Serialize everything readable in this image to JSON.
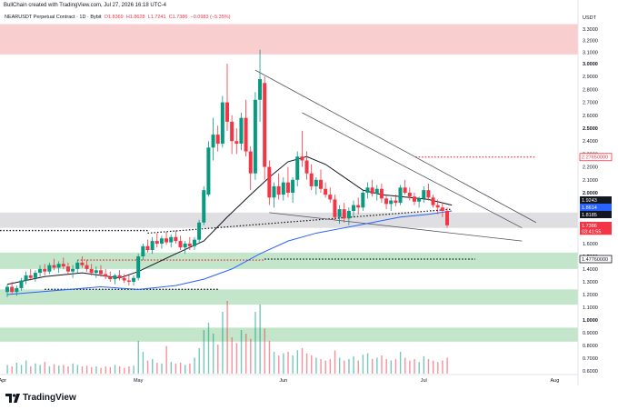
{
  "header": {
    "text": "BullChain created with TradingView.com, Jul 27, 2026 16:18 UTC-4"
  },
  "legend": {
    "symbol": "NEARUSDT Perpetual Contract · 1D · Bybit",
    "open": "O1.8369",
    "high": "H1.8628",
    "low": "L1.7241",
    "close": "C1.7386",
    "change": "−0.0983 (−5.35%)"
  },
  "currency": "USDT",
  "branding": "TradingView",
  "colors": {
    "up": "#089981",
    "down": "#f23645",
    "supply_zone": "#f7c5c7",
    "demand_zone": "#b9e0c0",
    "gray_zone": "#d9d9dd",
    "ma_black": "#131722",
    "ma_blue": "#2962ff"
  },
  "chart_data": {
    "type": "candlestick",
    "x_ticks": [
      "Apr",
      "May",
      "Jun",
      "Jul",
      "Aug"
    ],
    "y_ticks": [
      {
        "value": 3.3,
        "label": "3.3000"
      },
      {
        "value": 3.2,
        "label": "3.2000"
      },
      {
        "value": 3.1,
        "label": "3.1000"
      },
      {
        "value": 3.0,
        "label": "3.0000",
        "bold": true
      },
      {
        "value": 2.9,
        "label": "2.9000"
      },
      {
        "value": 2.8,
        "label": "2.8000"
      },
      {
        "value": 2.7,
        "label": "2.7000"
      },
      {
        "value": 2.6,
        "label": "2.6000"
      },
      {
        "value": 2.5,
        "label": "2.5000",
        "bold": true
      },
      {
        "value": 2.4,
        "label": "2.4000"
      },
      {
        "value": 2.3,
        "label": "2.3000"
      },
      {
        "value": 2.2,
        "label": "2.2000"
      },
      {
        "value": 2.1,
        "label": "2.1000"
      },
      {
        "value": 2.0,
        "label": "2.0000",
        "bold": true
      },
      {
        "value": 1.6,
        "label": "1.6000"
      },
      {
        "value": 1.5,
        "label": "1.5000",
        "bold": true
      },
      {
        "value": 1.4,
        "label": "1.4000"
      },
      {
        "value": 1.3,
        "label": "1.3000"
      },
      {
        "value": 1.2,
        "label": "1.2000"
      },
      {
        "value": 1.1,
        "label": "1.1000"
      },
      {
        "value": 1.0,
        "label": "1.0000",
        "bold": true
      },
      {
        "value": 0.9,
        "label": "0.9000"
      },
      {
        "value": 0.8,
        "label": "0.8000"
      },
      {
        "value": 0.7,
        "label": "0.7000"
      },
      {
        "value": 0.6,
        "label": "0.6000"
      }
    ],
    "price_labels": [
      {
        "label": "2.27650000",
        "value": 2.2765,
        "color": "#f23645",
        "style": "outline"
      },
      {
        "label": "1.9243",
        "value": 1.9243,
        "color": "#131722",
        "style": "fill"
      },
      {
        "label": "1.8614",
        "value": 1.8614,
        "color": "#2962ff",
        "style": "fill"
      },
      {
        "label": "1.8185",
        "value": 1.8185,
        "color": "#131722",
        "style": "fill"
      },
      {
        "label": "1.7386",
        "value": 1.7386,
        "color": "#f23645",
        "style": "fill"
      },
      {
        "label": "03:41:55",
        "value": 1.695,
        "color": "#f23645",
        "style": "fill"
      },
      {
        "label": "1.47760000",
        "value": 1.4776,
        "color": "#131722",
        "style": "outline"
      }
    ],
    "zones": [
      {
        "kind": "supply",
        "from": 3.08,
        "to": 3.34
      },
      {
        "kind": "gray",
        "from": 1.72,
        "to": 1.83
      },
      {
        "kind": "demand",
        "from": 1.4,
        "to": 1.53
      },
      {
        "kind": "demand",
        "from": 1.12,
        "to": 1.24
      },
      {
        "kind": "demand",
        "from": 0.83,
        "to": 0.94
      }
    ],
    "candles": [
      [
        1.22,
        1.28,
        1.18,
        1.26
      ],
      [
        1.26,
        1.3,
        1.2,
        1.22
      ],
      [
        1.22,
        1.27,
        1.19,
        1.25
      ],
      [
        1.25,
        1.33,
        1.23,
        1.31
      ],
      [
        1.31,
        1.38,
        1.28,
        1.35
      ],
      [
        1.35,
        1.4,
        1.31,
        1.33
      ],
      [
        1.33,
        1.39,
        1.3,
        1.37
      ],
      [
        1.37,
        1.43,
        1.34,
        1.4
      ],
      [
        1.4,
        1.44,
        1.35,
        1.38
      ],
      [
        1.38,
        1.45,
        1.36,
        1.43
      ],
      [
        1.43,
        1.48,
        1.39,
        1.41
      ],
      [
        1.41,
        1.46,
        1.37,
        1.44
      ],
      [
        1.44,
        1.49,
        1.4,
        1.42
      ],
      [
        1.42,
        1.45,
        1.36,
        1.38
      ],
      [
        1.38,
        1.43,
        1.33,
        1.4
      ],
      [
        1.4,
        1.47,
        1.37,
        1.45
      ],
      [
        1.45,
        1.5,
        1.41,
        1.43
      ],
      [
        1.43,
        1.47,
        1.38,
        1.4
      ],
      [
        1.4,
        1.44,
        1.35,
        1.37
      ],
      [
        1.37,
        1.42,
        1.33,
        1.39
      ],
      [
        1.39,
        1.43,
        1.34,
        1.36
      ],
      [
        1.36,
        1.4,
        1.32,
        1.34
      ],
      [
        1.34,
        1.38,
        1.3,
        1.32
      ],
      [
        1.32,
        1.36,
        1.28,
        1.35
      ],
      [
        1.35,
        1.39,
        1.31,
        1.33
      ],
      [
        1.33,
        1.36,
        1.29,
        1.31
      ],
      [
        1.31,
        1.35,
        1.27,
        1.3
      ],
      [
        1.3,
        1.35,
        1.27,
        1.33
      ],
      [
        1.33,
        1.52,
        1.31,
        1.5
      ],
      [
        1.5,
        1.6,
        1.47,
        1.58
      ],
      [
        1.58,
        1.63,
        1.53,
        1.55
      ],
      [
        1.55,
        1.65,
        1.52,
        1.62
      ],
      [
        1.62,
        1.68,
        1.57,
        1.6
      ],
      [
        1.6,
        1.66,
        1.56,
        1.64
      ],
      [
        1.64,
        1.69,
        1.59,
        1.61
      ],
      [
        1.61,
        1.67,
        1.57,
        1.65
      ],
      [
        1.65,
        1.7,
        1.6,
        1.62
      ],
      [
        1.62,
        1.66,
        1.55,
        1.57
      ],
      [
        1.57,
        1.62,
        1.52,
        1.6
      ],
      [
        1.6,
        1.65,
        1.55,
        1.58
      ],
      [
        1.58,
        1.65,
        1.55,
        1.63
      ],
      [
        1.63,
        1.78,
        1.6,
        1.76
      ],
      [
        1.76,
        2.05,
        1.74,
        2.02
      ],
      [
        1.98,
        2.4,
        1.96,
        2.35
      ],
      [
        2.35,
        2.58,
        2.25,
        2.45
      ],
      [
        2.45,
        2.52,
        2.32,
        2.38
      ],
      [
        2.38,
        2.75,
        2.35,
        2.7
      ],
      [
        2.7,
        3.0,
        2.48,
        2.55
      ],
      [
        2.55,
        2.6,
        2.3,
        2.4
      ],
      [
        2.4,
        2.5,
        2.3,
        2.38
      ],
      [
        2.38,
        2.62,
        2.33,
        2.58
      ],
      [
        2.58,
        2.72,
        2.28,
        2.32
      ],
      [
        2.32,
        2.36,
        2.02,
        2.15
      ],
      [
        2.15,
        2.78,
        2.1,
        2.72
      ],
      [
        2.72,
        3.12,
        2.55,
        2.88
      ],
      [
        2.85,
        2.9,
        2.1,
        2.2
      ],
      [
        2.2,
        2.25,
        1.88,
        1.95
      ],
      [
        1.95,
        2.08,
        1.86,
        2.05
      ],
      [
        2.05,
        2.15,
        1.93,
        1.98
      ],
      [
        1.98,
        2.12,
        1.92,
        2.08
      ],
      [
        2.08,
        2.2,
        1.95,
        2.0
      ],
      [
        2.0,
        2.12,
        1.9,
        2.1
      ],
      [
        2.1,
        2.32,
        2.05,
        2.28
      ],
      [
        2.28,
        2.48,
        2.2,
        2.25
      ],
      [
        2.25,
        2.32,
        2.1,
        2.15
      ],
      [
        2.15,
        2.22,
        2.02,
        2.05
      ],
      [
        2.05,
        2.12,
        1.98,
        2.1
      ],
      [
        2.1,
        2.18,
        2.0,
        2.03
      ],
      [
        2.03,
        2.08,
        1.95,
        1.98
      ],
      [
        1.98,
        2.04,
        1.9,
        1.93
      ],
      [
        1.93,
        1.98,
        1.78,
        1.8
      ],
      [
        1.8,
        1.88,
        1.75,
        1.85
      ],
      [
        1.85,
        1.9,
        1.76,
        1.79
      ],
      [
        1.79,
        1.86,
        1.74,
        1.84
      ],
      [
        1.84,
        1.92,
        1.8,
        1.88
      ],
      [
        1.88,
        1.95,
        1.82,
        1.86
      ],
      [
        1.86,
        2.02,
        1.84,
        2.0
      ],
      [
        2.0,
        2.08,
        1.94,
        2.04
      ],
      [
        2.04,
        2.1,
        1.96,
        1.99
      ],
      [
        1.99,
        2.06,
        1.92,
        2.03
      ],
      [
        2.03,
        2.07,
        1.9,
        1.94
      ],
      [
        1.94,
        1.98,
        1.85,
        1.89
      ],
      [
        1.89,
        1.95,
        1.84,
        1.92
      ],
      [
        1.92,
        1.98,
        1.87,
        1.9
      ],
      [
        1.9,
        2.06,
        1.88,
        2.04
      ],
      [
        2.04,
        2.1,
        1.98,
        2.0
      ],
      [
        2.0,
        2.04,
        1.92,
        1.96
      ],
      [
        1.96,
        2.0,
        1.88,
        1.91
      ],
      [
        1.91,
        1.96,
        1.86,
        1.94
      ],
      [
        1.94,
        2.05,
        1.9,
        2.02
      ],
      [
        2.02,
        2.07,
        1.92,
        1.95
      ],
      [
        1.95,
        1.98,
        1.86,
        1.88
      ],
      [
        1.88,
        1.93,
        1.82,
        1.86
      ],
      [
        1.86,
        1.9,
        1.8,
        1.84
      ],
      [
        1.84,
        1.86,
        1.72,
        1.74
      ]
    ],
    "ma_black": [
      [
        0,
        1.28
      ],
      [
        8,
        1.34
      ],
      [
        16,
        1.37
      ],
      [
        24,
        1.33
      ],
      [
        28,
        1.38
      ],
      [
        36,
        1.52
      ],
      [
        42,
        1.62
      ],
      [
        47,
        1.8
      ],
      [
        52,
        1.98
      ],
      [
        56,
        2.12
      ],
      [
        60,
        2.24
      ],
      [
        64,
        2.28
      ],
      [
        68,
        2.22
      ],
      [
        72,
        2.12
      ],
      [
        76,
        2.02
      ],
      [
        80,
        1.98
      ],
      [
        86,
        1.95
      ],
      [
        90,
        1.93
      ],
      [
        95,
        1.88
      ]
    ],
    "ma_blue": [
      [
        0,
        1.2
      ],
      [
        10,
        1.23
      ],
      [
        20,
        1.26
      ],
      [
        28,
        1.24
      ],
      [
        36,
        1.27
      ],
      [
        42,
        1.32
      ],
      [
        48,
        1.4
      ],
      [
        54,
        1.52
      ],
      [
        60,
        1.62
      ],
      [
        66,
        1.68
      ],
      [
        72,
        1.72
      ],
      [
        78,
        1.76
      ],
      [
        84,
        1.8
      ],
      [
        90,
        1.82
      ],
      [
        95,
        1.84
      ]
    ],
    "volume": [
      0.12,
      0.1,
      0.15,
      0.12,
      0.18,
      0.1,
      0.14,
      0.12,
      0.16,
      0.1,
      0.13,
      0.11,
      0.12,
      0.1,
      0.14,
      0.12,
      0.1,
      0.11,
      0.09,
      0.1,
      0.08,
      0.1,
      0.09,
      0.12,
      0.1,
      0.08,
      0.1,
      0.11,
      0.45,
      0.3,
      0.18,
      0.2,
      0.15,
      0.14,
      0.38,
      0.16,
      0.14,
      0.15,
      0.12,
      0.14,
      0.22,
      0.35,
      0.6,
      0.7,
      0.55,
      0.4,
      0.85,
      1.0,
      0.5,
      0.42,
      0.6,
      0.55,
      0.48,
      0.85,
      0.95,
      0.62,
      0.45,
      0.3,
      0.25,
      0.28,
      0.3,
      0.25,
      0.32,
      0.35,
      0.28,
      0.25,
      0.22,
      0.2,
      0.18,
      0.2,
      0.32,
      0.22,
      0.18,
      0.2,
      0.24,
      0.18,
      0.26,
      0.28,
      0.2,
      0.22,
      0.25,
      0.2,
      0.18,
      0.2,
      0.3,
      0.22,
      0.18,
      0.2,
      0.16,
      0.24,
      0.2,
      0.18,
      0.16,
      0.18,
      0.22
    ]
  }
}
